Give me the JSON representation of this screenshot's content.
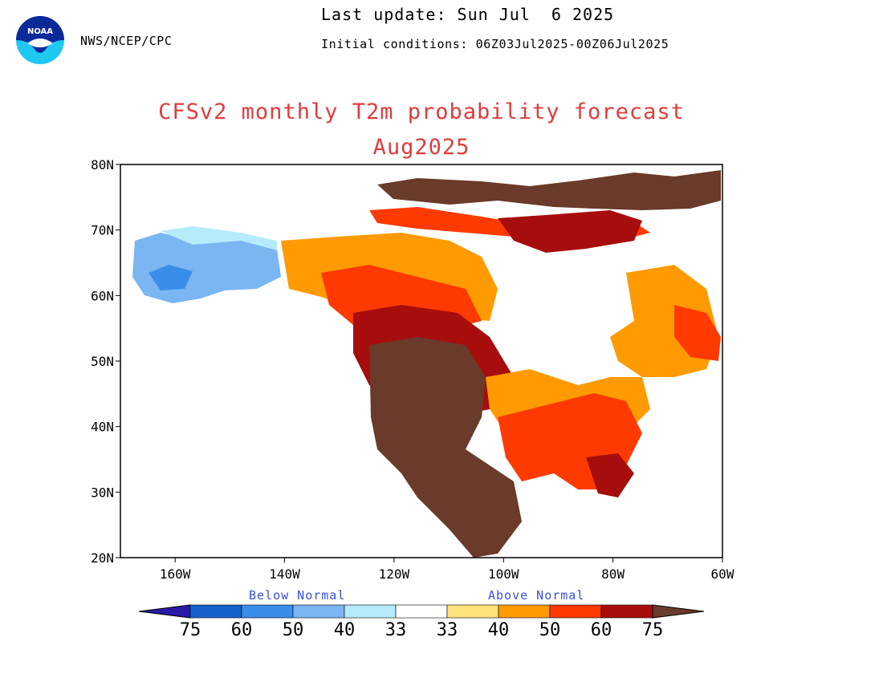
{
  "header": {
    "agency": "NWS/NCEP/CPC",
    "last_update": "Last update: Sun Jul  6 2025",
    "initial_conditions": "Initial conditions: 06Z03Jul2025-00Z06Jul2025",
    "title": "CFSv2 monthly T2m probability forecast",
    "subtitle": "Aug2025",
    "logo_text": "NOAA"
  },
  "map": {
    "lat_labels": [
      "80N",
      "70N",
      "60N",
      "50N",
      "40N",
      "30N",
      "20N"
    ],
    "lon_labels": [
      "160W",
      "140W",
      "120W",
      "100W",
      "80W",
      "60W"
    ],
    "lat_range": [
      20,
      80
    ],
    "lon_range": [
      -170,
      -60
    ]
  },
  "legend": {
    "below_label": "Below Normal",
    "above_label": "Above Normal",
    "tick_labels": [
      "75",
      "60",
      "50",
      "40",
      "33",
      "33",
      "40",
      "50",
      "60",
      "75"
    ],
    "colors": [
      "#2a1aa8",
      "#1662cc",
      "#3a8eea",
      "#7ab6f2",
      "#b4ecfb",
      "#ffffff",
      "#ffe27a",
      "#ff9a00",
      "#ff3a00",
      "#a80d0d",
      "#6a3a2a"
    ]
  },
  "colors": {
    "below_1": "#b4ecfb",
    "below_2": "#7ab6f2",
    "below_3": "#3a8eea",
    "below_4": "#1662cc",
    "above_1": "#ffe27a",
    "above_2": "#ff9a00",
    "above_3": "#ff3a00",
    "above_4": "#a80d0d",
    "above_5": "#6a3a2a"
  }
}
